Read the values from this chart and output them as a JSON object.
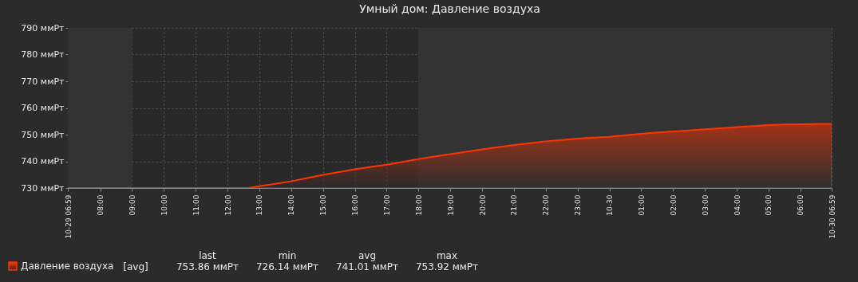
{
  "chart_data": {
    "type": "area",
    "title": "Умный дом: Давление воздуха",
    "x": [
      "--10-29T06:59",
      "--10-29T08:00",
      "--10-29T09:00",
      "--10-29T10:00",
      "--10-29T11:00",
      "--10-29T12:00",
      "--10-29T12:30",
      "--10-29T12:40",
      "--10-29T13:00",
      "--10-29T13:30",
      "--10-29T14:00",
      "--10-29T14:30",
      "--10-29T15:00",
      "--10-29T15:30",
      "--10-29T16:00",
      "--10-29T16:30",
      "--10-29T17:00",
      "--10-29T17:30",
      "--10-29T18:00",
      "--10-29T18:30",
      "--10-29T19:00",
      "--10-29T19:30",
      "--10-29T20:00",
      "--10-29T20:30",
      "--10-29T21:00",
      "--10-29T21:30",
      "--10-29T22:00",
      "--10-29T22:30",
      "--10-29T23:00",
      "--10-29T23:30",
      "--10-30T00:00",
      "--10-30T00:30",
      "--10-30T01:00",
      "--10-30T01:30",
      "--10-30T02:00",
      "--10-30T02:30",
      "--10-30T03:00",
      "--10-30T03:30",
      "--10-30T04:00",
      "--10-30T04:30",
      "--10-30T05:00",
      "--10-30T05:30",
      "--10-30T06:00",
      "--10-30T06:30",
      "--10-30T06:59"
    ],
    "series": [
      {
        "name": "Давление воздуха",
        "color": "#ff3300",
        "values": [
          730,
          730,
          730,
          730,
          730,
          730,
          730,
          730,
          730.7,
          731.6,
          732.5,
          733.7,
          734.9,
          736.0,
          737.0,
          737.9,
          738.7,
          739.8,
          740.8,
          741.8,
          742.7,
          743.6,
          744.5,
          745.3,
          746.1,
          746.8,
          747.5,
          748.0,
          748.5,
          748.9,
          749.2,
          749.8,
          750.3,
          750.8,
          751.2,
          751.6,
          752.0,
          752.4,
          752.8,
          753.2,
          753.6,
          753.8,
          753.9,
          754.0,
          754.0
        ]
      }
    ],
    "xlim": [
      "--10-29T06:59",
      "--10-30T06:59"
    ],
    "xticks": [
      {
        "value": "--10-29T06:59",
        "label": "10-29 06:59"
      },
      {
        "value": "--10-29T08:00",
        "label": "08:00"
      },
      {
        "value": "--10-29T09:00",
        "label": "09:00"
      },
      {
        "value": "--10-29T10:00",
        "label": "10:00"
      },
      {
        "value": "--10-29T11:00",
        "label": "11:00"
      },
      {
        "value": "--10-29T12:00",
        "label": "12:00"
      },
      {
        "value": "--10-29T13:00",
        "label": "13:00"
      },
      {
        "value": "--10-29T14:00",
        "label": "14:00"
      },
      {
        "value": "--10-29T15:00",
        "label": "15:00"
      },
      {
        "value": "--10-29T16:00",
        "label": "16:00"
      },
      {
        "value": "--10-29T17:00",
        "label": "17:00"
      },
      {
        "value": "--10-29T18:00",
        "label": "18:00"
      },
      {
        "value": "--10-29T19:00",
        "label": "19:00"
      },
      {
        "value": "--10-29T20:00",
        "label": "20:00"
      },
      {
        "value": "--10-29T21:00",
        "label": "21:00"
      },
      {
        "value": "--10-29T22:00",
        "label": "22:00"
      },
      {
        "value": "--10-29T23:00",
        "label": "23:00"
      },
      {
        "value": "--10-30T00:00",
        "label": "10-30"
      },
      {
        "value": "--10-30T01:00",
        "label": "01:00"
      },
      {
        "value": "--10-30T02:00",
        "label": "02:00"
      },
      {
        "value": "--10-30T03:00",
        "label": "03:00"
      },
      {
        "value": "--10-30T04:00",
        "label": "04:00"
      },
      {
        "value": "--10-30T05:00",
        "label": "05:00"
      },
      {
        "value": "--10-30T06:00",
        "label": "06:00"
      },
      {
        "value": "--10-30T06:59",
        "label": "10-30 06:59"
      }
    ],
    "ylim": [
      730,
      790
    ],
    "yticks": [
      {
        "value": 730,
        "label": "730 ммРт"
      },
      {
        "value": 740,
        "label": "740 ммРт"
      },
      {
        "value": 750,
        "label": "750 ммРт"
      },
      {
        "value": 760,
        "label": "760 ммРт"
      },
      {
        "value": 770,
        "label": "770 ммРт"
      },
      {
        "value": 780,
        "label": "780 ммРт"
      },
      {
        "value": 790,
        "label": "790 ммРт"
      }
    ],
    "bands": [
      {
        "axis": "x",
        "from": "--10-29T06:59",
        "to": "--10-29T09:00",
        "color": "#333333"
      },
      {
        "axis": "x",
        "from": "--10-29T18:00",
        "to": "--10-30T06:59",
        "color": "#333333"
      }
    ],
    "grid": true,
    "line_style": "solid",
    "legend": "bottom left",
    "annotations": [
      "last",
      "min",
      "avg",
      "max",
      "[avg]",
      "753.86 ммРт",
      "726.14 ммРт",
      "741.01 ммРт",
      "753.92 ммРт"
    ]
  }
}
